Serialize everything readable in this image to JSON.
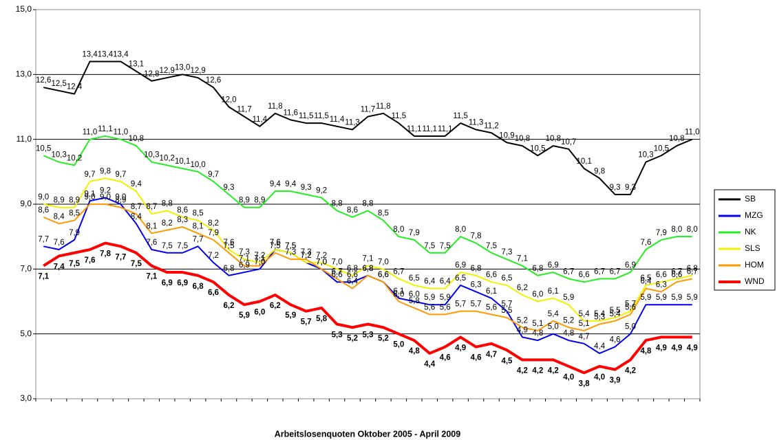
{
  "chart_data": {
    "type": "line",
    "title": "Arbeitslosenquoten Oktober 2005 - April 2009",
    "categories": [
      null,
      null,
      null,
      null,
      null,
      null,
      null,
      null,
      null,
      null,
      null,
      null,
      null,
      null,
      null,
      null,
      null,
      null,
      null,
      null,
      null,
      null,
      null,
      null,
      null,
      null,
      null,
      null,
      null,
      null,
      null,
      null,
      null,
      null,
      null,
      null,
      null,
      null,
      null,
      null,
      null,
      null,
      null
    ],
    "ylim": [
      3,
      15
    ],
    "yticks": [
      {
        "value": 3,
        "label": "3,0"
      },
      {
        "value": 5,
        "label": "5,0"
      },
      {
        "value": 7,
        "label": "7,0"
      },
      {
        "value": 9,
        "label": "9,0"
      },
      {
        "value": 11,
        "label": "11,0"
      },
      {
        "value": 13,
        "label": "13,0"
      },
      {
        "value": 15,
        "label": "15,0"
      }
    ],
    "grid": true,
    "legend": "right",
    "series": [
      {
        "name": "SB",
        "color": "#000000",
        "values": [
          12.6,
          12.5,
          12.4,
          13.4,
          13.4,
          13.4,
          13.1,
          12.8,
          12.9,
          13.0,
          12.9,
          12.6,
          12.0,
          11.7,
          11.4,
          11.8,
          11.6,
          11.5,
          11.5,
          11.4,
          11.3,
          11.7,
          11.8,
          11.5,
          11.1,
          11.1,
          11.1,
          11.5,
          11.3,
          11.2,
          10.9,
          10.8,
          10.5,
          10.8,
          10.7,
          10.1,
          9.8,
          9.3,
          9.3,
          10.3,
          10.5,
          10.8,
          11.0
        ],
        "value_labels": [
          "12,6",
          "12,5",
          "12,4",
          "13,4",
          "13,4",
          "13,4",
          "13,1",
          "12,8",
          "12,9",
          "13,0",
          "12,9",
          "12,6",
          "12,0",
          "11,7",
          "11,4",
          "11,8",
          "11,6",
          "11,5",
          "11,5",
          "11,4",
          "11,3",
          "11,7",
          "11,8",
          "11,5",
          "11,1",
          "11,1",
          "11,1",
          "11,5",
          "11,3",
          "11,2",
          "10,9",
          "10,8",
          "10,5",
          "10,8",
          "10,7",
          "10,1",
          "9,8",
          "9,3",
          "9,3",
          "10,3",
          "10,5",
          "10,8",
          "11,0"
        ]
      },
      {
        "name": "MZG",
        "color": "#0000ee",
        "values": [
          7.7,
          7.6,
          7.9,
          9.1,
          9.2,
          9.0,
          8.4,
          7.6,
          7.5,
          7.5,
          7.7,
          7.2,
          6.8,
          6.9,
          7.0,
          7.6,
          7.5,
          7.2,
          7.0,
          6.6,
          6.6,
          6.8,
          6.6,
          6.1,
          6.0,
          5.9,
          5.9,
          6.5,
          6.3,
          6.1,
          5.7,
          4.9,
          4.8,
          5.0,
          4.8,
          4.7,
          4.4,
          4.6,
          5.0,
          5.9,
          5.9,
          5.9,
          5.9
        ],
        "value_labels": [
          "7,7",
          "7,6",
          "7,9",
          "9,1",
          "9,2",
          "9,0",
          "8,4",
          "7,6",
          "7,5",
          "7,5",
          "7,7",
          "7,2",
          "6,8",
          "6,9",
          "7,0",
          "7,6",
          "7,5",
          "7,2",
          "7,0",
          "6,6",
          "6,6",
          "6,8",
          "6,6",
          "6,1",
          "6,0",
          "5,9",
          "5,9",
          "6,5",
          "6,3",
          "6,1",
          "5,7",
          "4,9",
          "4,8",
          "5,0",
          "4,8",
          "4,7",
          "4,4",
          "4,6",
          "5,0",
          "5,9",
          "5,9",
          "5,9",
          "5,9"
        ]
      },
      {
        "name": "NK",
        "color": "#22ee22",
        "values": [
          10.5,
          10.3,
          10.2,
          11.0,
          11.1,
          11.0,
          10.8,
          10.3,
          10.2,
          10.1,
          10.0,
          9.7,
          9.3,
          8.9,
          8.9,
          9.4,
          9.4,
          9.3,
          9.2,
          8.8,
          8.6,
          8.8,
          8.5,
          8.0,
          7.9,
          7.5,
          7.5,
          8.0,
          7.8,
          7.5,
          7.3,
          7.1,
          6.8,
          6.9,
          6.7,
          6.6,
          6.7,
          6.7,
          6.9,
          7.6,
          7.9,
          8.0,
          8.0
        ],
        "value_labels": [
          "10,5",
          "10,3",
          "10,2",
          "11,0",
          "11,1",
          "11,0",
          "10,8",
          "10,3",
          "10,2",
          "10,1",
          "10,0",
          "9,7",
          "9,3",
          "8,9",
          "8,9",
          "9,4",
          "9,4",
          "9,3",
          "9,2",
          "8,8",
          "8,6",
          "8,8",
          "8,5",
          "8,0",
          "7,9",
          "7,5",
          "7,5",
          "8,0",
          "7,8",
          "7,5",
          "7,3",
          "7,1",
          "6,8",
          "6,9",
          "6,7",
          "6,6",
          "6,7",
          "6,7",
          "6,9",
          "7,6",
          "7,9",
          "8,0",
          "8,0"
        ]
      },
      {
        "name": "SLS",
        "color": "#f2f200",
        "values": [
          9.0,
          8.9,
          8.9,
          9.7,
          9.8,
          9.7,
          9.4,
          8.7,
          8.8,
          8.6,
          8.5,
          8.2,
          7.6,
          7.3,
          7.2,
          7.6,
          7.5,
          7.2,
          7.2,
          7.0,
          6.8,
          7.1,
          7.0,
          6.7,
          6.5,
          6.4,
          6.4,
          6.9,
          6.8,
          6.6,
          6.5,
          6.2,
          6.0,
          6.1,
          5.9,
          5.4,
          5.4,
          5.5,
          5.7,
          6.5,
          6.6,
          6.7,
          6.8
        ],
        "value_labels": [
          "9,0",
          "8,9",
          "8,9",
          "9,7",
          "9,8",
          "9,7",
          "9,4",
          "8,7",
          "8,8",
          "8,6",
          "8,5",
          "8,2",
          "7,6",
          "7,3",
          "7,2",
          "7,6",
          "7,5",
          "7,2",
          "7,2",
          "7,0",
          "6,8",
          "7,1",
          "7,0",
          "6,7",
          "6,5",
          "6,4",
          "6,4",
          "6,9",
          "6,8",
          "6,6",
          "6,5",
          "6,2",
          "6,0",
          "6,1",
          "5,9",
          "5,4",
          "5,4",
          "5,5",
          "5,7",
          "6,5",
          "6,6",
          "6,7",
          "6,8"
        ]
      },
      {
        "name": "HOM",
        "color": "#ff9900",
        "values": [
          8.6,
          8.4,
          8.5,
          9.0,
          9.0,
          8.9,
          8.7,
          8.1,
          8.2,
          8.3,
          8.1,
          7.9,
          7.5,
          7.1,
          7.1,
          7.5,
          7.3,
          7.3,
          7.0,
          6.7,
          6.4,
          6.8,
          6.6,
          6.0,
          5.8,
          5.6,
          5.6,
          5.7,
          5.7,
          5.6,
          5.5,
          5.2,
          5.1,
          5.4,
          5.2,
          5.1,
          5.3,
          5.4,
          5.6,
          6.4,
          6.3,
          6.6,
          6.7
        ],
        "value_labels": [
          "8,6",
          "8,4",
          "8,5",
          "9,0",
          "9,0",
          "8,9",
          "8,7",
          "8,1",
          "8,2",
          "8,3",
          "8,1",
          "7,9",
          "7,5",
          "7,1",
          "7,1",
          "7,5",
          "7,3",
          "7,3",
          "7,0",
          "6,7",
          "6,4",
          "6,8",
          "6,6",
          "6,0",
          "5,8",
          "5,6",
          "5,6",
          "5,7",
          "5,7",
          "5,6",
          "5,5",
          "5,2",
          "5,1",
          "5,4",
          "5,2",
          "5,1",
          "5,3",
          "5,4",
          "5,6",
          "6,4",
          "6,3",
          "6,6",
          "6,7"
        ]
      },
      {
        "name": "WND",
        "color": "#ff0000",
        "values": [
          7.1,
          7.4,
          7.5,
          7.6,
          7.8,
          7.7,
          7.5,
          7.1,
          6.9,
          6.9,
          6.8,
          6.6,
          6.2,
          5.9,
          6.0,
          6.2,
          5.9,
          5.7,
          5.8,
          5.3,
          5.2,
          5.3,
          5.2,
          5.0,
          4.8,
          4.4,
          4.6,
          4.9,
          4.6,
          4.7,
          4.5,
          4.2,
          4.2,
          4.2,
          4.0,
          3.8,
          4.0,
          3.9,
          4.2,
          4.8,
          4.9,
          4.9,
          4.9
        ],
        "value_labels": [
          "7,1",
          "7,4",
          "7,5",
          "7,6",
          "7,8",
          "7,7",
          "7,5",
          "7,1",
          "6,9",
          "6,9",
          "6,8",
          "6,6",
          "6,2",
          "5,9",
          "6,0",
          "6,2",
          "5,9",
          "5,7",
          "5,8",
          "5,3",
          "5,2",
          "5,3",
          "5,2",
          "5,0",
          "4,8",
          "4,4",
          "4,6",
          "4,9",
          "4,6",
          "4,7",
          "4,5",
          "4,2",
          "4,2",
          "4,2",
          "4,0",
          "3,8",
          "4,0",
          "3,9",
          "4,2",
          "4,8",
          "4,9",
          "4,9",
          "4,9"
        ]
      }
    ]
  }
}
